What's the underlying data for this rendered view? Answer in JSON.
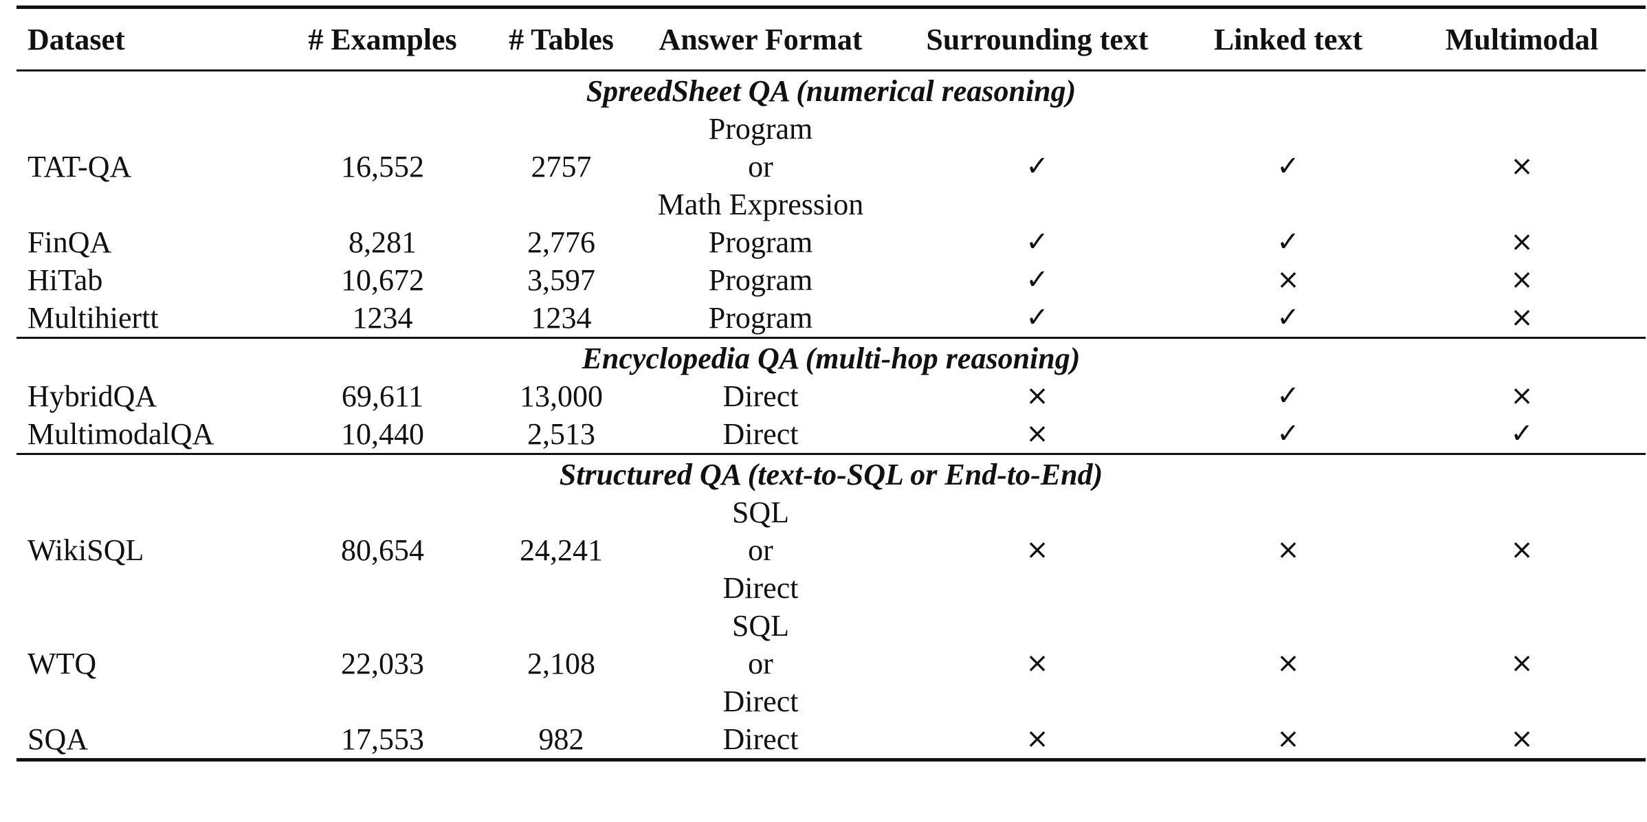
{
  "table": {
    "headers": [
      "Dataset",
      "# Examples",
      "# Tables",
      "Answer Format",
      "Surrounding text",
      "Linked text",
      "Multimodal"
    ],
    "sections": [
      {
        "title": "SpreedSheet QA (numerical reasoning)",
        "rows": [
          {
            "dataset": "TAT-QA",
            "examples": "16,552",
            "tables": "2757",
            "format": [
              "Program",
              "or",
              "Math Expression"
            ],
            "surrounding": "✓",
            "linked": "✓",
            "multimodal": "×"
          },
          {
            "dataset": "FinQA",
            "examples": "8,281",
            "tables": "2,776",
            "format": [
              "Program"
            ],
            "surrounding": "✓",
            "linked": "✓",
            "multimodal": "×"
          },
          {
            "dataset": "HiTab",
            "examples": "10,672",
            "tables": "3,597",
            "format": [
              "Program"
            ],
            "surrounding": "✓",
            "linked": "×",
            "multimodal": "×"
          },
          {
            "dataset": "Multihiertt",
            "examples": "1234",
            "tables": "1234",
            "format": [
              "Program"
            ],
            "surrounding": "✓",
            "linked": "✓",
            "multimodal": "×"
          }
        ]
      },
      {
        "title": "Encyclopedia QA (multi-hop reasoning)",
        "rows": [
          {
            "dataset": "HybridQA",
            "examples": "69,611",
            "tables": "13,000",
            "format": [
              "Direct"
            ],
            "surrounding": "×",
            "linked": "✓",
            "multimodal": "×"
          },
          {
            "dataset": "MultimodalQA",
            "examples": "10,440",
            "tables": "2,513",
            "format": [
              "Direct"
            ],
            "surrounding": "×",
            "linked": "✓",
            "multimodal": "✓"
          }
        ]
      },
      {
        "title": "Structured QA (text-to-SQL or End-to-End)",
        "rows": [
          {
            "dataset": "WikiSQL",
            "examples": "80,654",
            "tables": "24,241",
            "format": [
              "SQL",
              "or",
              "Direct"
            ],
            "surrounding": "×",
            "linked": "×",
            "multimodal": "×"
          },
          {
            "dataset": "WTQ",
            "examples": "22,033",
            "tables": "2,108",
            "format": [
              "SQL",
              "or",
              "Direct"
            ],
            "surrounding": "×",
            "linked": "×",
            "multimodal": "×"
          },
          {
            "dataset": "SQA",
            "examples": "17,553",
            "tables": "982",
            "format": [
              "Direct"
            ],
            "surrounding": "×",
            "linked": "×",
            "multimodal": "×"
          }
        ]
      }
    ]
  }
}
